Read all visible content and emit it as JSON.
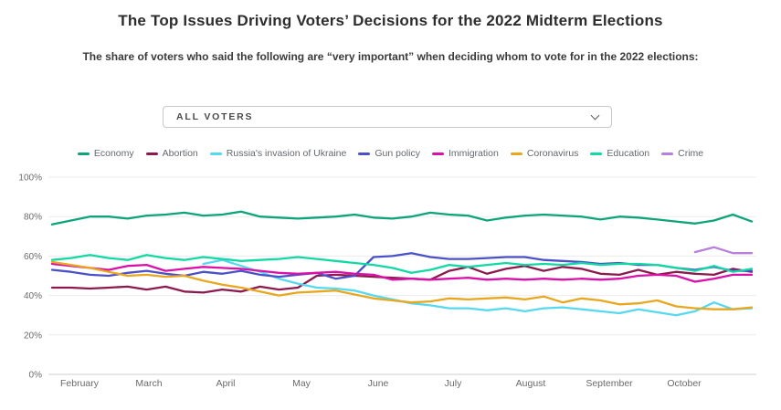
{
  "header": {
    "title": "The Top Issues Driving Voters’ Decisions for the 2022 Midterm Elections",
    "subtitle": "The share of voters who said the following are “very important” when deciding whom to vote for in the 2022 elections:"
  },
  "filter": {
    "value": "ALL VOTERS"
  },
  "chart_data": {
    "type": "line",
    "title": "",
    "xlabel": "",
    "ylabel": "",
    "ylim": [
      0,
      100
    ],
    "grid": true,
    "legend_position": "top",
    "y_ticks": [
      0,
      20,
      40,
      60,
      80,
      100
    ],
    "y_tick_suffix": "%",
    "x_labels": [
      "February",
      "March",
      "April",
      "May",
      "June",
      "July",
      "August",
      "September",
      "October"
    ],
    "series": [
      {
        "name": "Economy",
        "color": "#0ea47a",
        "values": [
          76,
          78,
          80,
          80,
          79,
          80.5,
          81,
          82,
          80.5,
          81,
          82.5,
          80,
          79.5,
          79,
          79.5,
          80,
          81,
          79.5,
          79,
          80,
          82,
          81,
          80.5,
          78,
          79.5,
          80.5,
          81,
          80.5,
          80,
          78.5,
          80,
          79.5,
          78.5,
          77.5,
          76.5,
          78,
          81,
          77.5
        ]
      },
      {
        "name": "Abortion",
        "color": "#8c1a4f",
        "values": [
          44,
          44,
          43.5,
          44,
          44.5,
          43,
          44.5,
          42,
          41.5,
          43,
          42,
          44.5,
          43,
          44,
          50,
          50.5,
          50,
          49.5,
          49,
          48.5,
          48,
          52.5,
          54.5,
          51,
          53.5,
          55,
          52.5,
          54.5,
          53.5,
          51,
          50.5,
          53,
          50.5,
          52,
          51,
          50.5,
          53.5,
          52
        ]
      },
      {
        "name": "Russia's invasion of Ukraine",
        "color": "#56d9ee",
        "values": [
          null,
          null,
          null,
          null,
          null,
          null,
          null,
          null,
          56,
          58,
          55,
          52,
          48.5,
          46,
          44,
          43.5,
          42.5,
          40,
          38,
          36,
          35,
          33.5,
          33.5,
          32.5,
          33.5,
          32,
          33.5,
          34,
          33,
          32,
          31,
          33,
          31.5,
          30,
          32,
          36.5,
          33,
          33.5
        ]
      },
      {
        "name": "Gun policy",
        "color": "#4a50c8",
        "values": [
          53,
          52,
          50.5,
          50,
          51.5,
          52.5,
          51,
          50,
          52,
          51,
          52.5,
          50.5,
          49.5,
          50.5,
          51.5,
          48.5,
          50,
          59.5,
          60,
          61.5,
          59.5,
          58.5,
          58.5,
          59,
          59.5,
          59.5,
          58,
          57.5,
          57,
          56,
          56.5,
          55.5,
          55.5,
          54,
          53,
          54.5,
          52.5,
          52.5
        ]
      },
      {
        "name": "Immigration",
        "color": "#d911a8",
        "values": [
          56,
          55,
          54,
          53,
          55,
          55.5,
          52.5,
          53.5,
          54.5,
          54,
          53.5,
          52.5,
          51.5,
          51,
          51.5,
          52,
          51,
          50.5,
          48,
          48.5,
          48,
          48.5,
          49,
          48,
          48.5,
          48,
          48.5,
          48,
          48.5,
          48,
          48.5,
          50,
          50.5,
          50,
          47,
          48.5,
          50.5,
          50.5
        ]
      },
      {
        "name": "Coronavirus",
        "color": "#e8a71f",
        "values": [
          57,
          55.5,
          54,
          52,
          50,
          50.5,
          49.5,
          50,
          47.5,
          45.5,
          44,
          42,
          40,
          41.5,
          42,
          42.5,
          40.5,
          38.5,
          37.5,
          36.5,
          37,
          38.5,
          38,
          38.5,
          39,
          38,
          39.5,
          36.5,
          38.5,
          37.5,
          35.5,
          36,
          37.5,
          34.5,
          33.5,
          33,
          33,
          34
        ]
      },
      {
        "name": "Education",
        "color": "#12d9a3",
        "values": [
          58,
          59,
          60.5,
          59,
          58,
          60.5,
          59,
          58,
          59.5,
          58.5,
          57.5,
          58,
          58.5,
          59.5,
          58.5,
          57.5,
          56.5,
          55.5,
          54,
          51.5,
          53,
          55.5,
          54.5,
          55.5,
          56.5,
          55.5,
          56,
          55.5,
          56.5,
          55.5,
          56,
          56,
          55.5,
          54,
          52.5,
          55,
          52,
          53.5
        ]
      },
      {
        "name": "Crime",
        "color": "#b87fdd",
        "values": [
          null,
          null,
          null,
          null,
          null,
          null,
          null,
          null,
          null,
          null,
          null,
          null,
          null,
          null,
          null,
          null,
          null,
          null,
          null,
          null,
          null,
          null,
          null,
          null,
          null,
          null,
          null,
          null,
          null,
          null,
          null,
          null,
          null,
          null,
          62,
          64.5,
          61.5,
          61.5
        ]
      }
    ]
  }
}
